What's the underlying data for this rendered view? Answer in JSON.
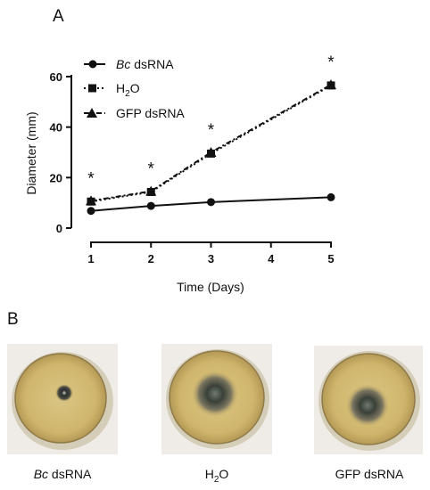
{
  "panels": {
    "a": "A",
    "b": "B"
  },
  "chart_data": {
    "type": "line",
    "title": "",
    "xlabel": "Time (Days)",
    "ylabel": "Diameter (mm)",
    "x": [
      1,
      2,
      3,
      4,
      5
    ],
    "xticks": [
      "1",
      "2",
      "3",
      "4",
      "5"
    ],
    "yticks": [
      "0",
      "20",
      "40",
      "60"
    ],
    "ylim": [
      0,
      60
    ],
    "xlim": [
      1,
      5
    ],
    "grid": false,
    "legend_position": "top-left",
    "series": [
      {
        "name_italic": "Bc",
        "name_rest": " dsRNA",
        "marker": "circle",
        "line": "solid",
        "x": [
          1,
          2,
          3,
          5
        ],
        "values": [
          6.8,
          8.8,
          10.3,
          12.2
        ]
      },
      {
        "name_base": "H",
        "name_sub": "2",
        "name_tail": "O",
        "marker": "square",
        "line": "dotted",
        "x": [
          1,
          2,
          3,
          5
        ],
        "values": [
          10.5,
          14.3,
          29.5,
          56.5
        ]
      },
      {
        "name": "GFP dsRNA",
        "marker": "triangle",
        "line": "dashdot",
        "x": [
          1,
          2,
          3,
          5
        ],
        "values": [
          10.8,
          14.6,
          30.0,
          56.8
        ]
      }
    ],
    "significance": [
      {
        "x": 1,
        "label": "*"
      },
      {
        "x": 2,
        "label": "*"
      },
      {
        "x": 3,
        "label": "*"
      },
      {
        "x": 5,
        "label": "*"
      }
    ]
  },
  "photos": {
    "captions": [
      {
        "italic": "Bc",
        "rest": " dsRNA"
      },
      {
        "base": "H",
        "sub": "2",
        "tail": "O"
      },
      {
        "text": "GFP dsRNA"
      }
    ],
    "colors": {
      "agar": "#d8c07e",
      "agar_dark": "#b69a55",
      "background": "#eeebe6",
      "mycelium": "#2b2f2c"
    }
  }
}
